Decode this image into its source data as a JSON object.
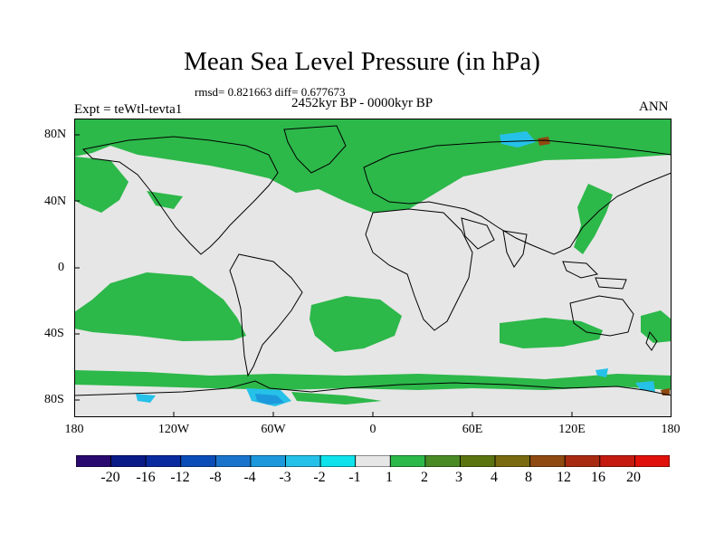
{
  "header": {
    "title": "Mean Sea Level Pressure (in hPa)",
    "stats": "rmsd= 0.821663 diff= 0.677673",
    "period": "2452kyr BP - 0000kyr BP",
    "experiment": "Expt = teWtl-tevta1",
    "season": "ANN"
  },
  "axes": {
    "lat_labels": [
      "80N",
      "40N",
      "0",
      "40S",
      "80S"
    ],
    "lon_labels": [
      "180",
      "120W",
      "60W",
      "0",
      "60E",
      "120E",
      "180"
    ]
  },
  "colorbar": {
    "labels": [
      "-20",
      "-16",
      "-12",
      "-8",
      "-4",
      "-3",
      "-2",
      "-1",
      "1",
      "2",
      "3",
      "4",
      "8",
      "12",
      "16",
      "20"
    ],
    "colors": [
      "#2a0a6e",
      "#0a1a86",
      "#0a2aa0",
      "#0a4db8",
      "#1a74cc",
      "#1c99dc",
      "#26c1e8",
      "#0ee3ec",
      "#e6e6e6",
      "#2db84a",
      "#4a8a24",
      "#5c7410",
      "#7a6a10",
      "#8e4a10",
      "#a82a10",
      "#c41a10",
      "#e0100a"
    ]
  },
  "colors": {
    "background_fill": "#e6e6e6",
    "positive_fill": "#2db84a",
    "negative_fill": "#26c1e8",
    "coastline": "#000000"
  }
}
